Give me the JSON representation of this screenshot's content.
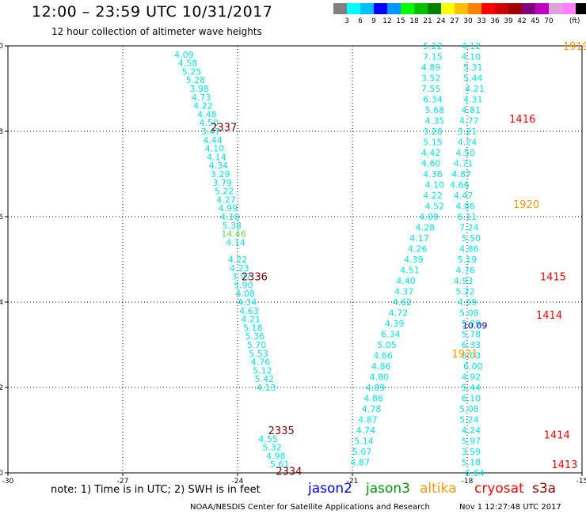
{
  "header": {
    "title": "12:00 – 23:59 UTC 10/31/2017",
    "subtitle": "12 hour collection of altimeter wave heights"
  },
  "colorbar": {
    "colors": [
      "#808080",
      "#00ffff",
      "#00bfff",
      "#0000ff",
      "#0096ff",
      "#00ff00",
      "#00c000",
      "#008000",
      "#ffff00",
      "#ffc000",
      "#ff8000",
      "#ff0000",
      "#d00000",
      "#a00000",
      "#800080",
      "#c000c0",
      "#e0a0e0",
      "#ff80ff",
      "#000000"
    ],
    "ticks": [
      "3",
      "6",
      "9",
      "12",
      "15",
      "18",
      "21",
      "24",
      "27",
      "30",
      "33",
      "36",
      "39",
      "42",
      "45",
      "70"
    ],
    "unit": "(ft)"
  },
  "chart_data": {
    "type": "scatter",
    "title": "12:00 – 23:59 UTC 10/31/2017",
    "subtitle": "12 hour collection of altimeter wave heights",
    "xlim": [
      -30,
      -15
    ],
    "ylim": [
      0,
      10
    ],
    "xticks": [
      "-30",
      "-27",
      "-24",
      "-21",
      "-18",
      "-15"
    ],
    "yticks": [
      "0",
      "2",
      "4",
      "6",
      "8",
      "10"
    ],
    "grid": true,
    "pass_labels": [
      {
        "text": "2337",
        "x": -24.7,
        "y": 8.1,
        "color": "#800000"
      },
      {
        "text": "2336",
        "x": -23.9,
        "y": 4.6,
        "color": "#800000"
      },
      {
        "text": "2335",
        "x": -23.2,
        "y": 1.0,
        "color": "#800000"
      },
      {
        "text": "2334",
        "x": -23.0,
        "y": 0.05,
        "color": "#800000"
      },
      {
        "text": "1919",
        "x": -15.5,
        "y": 10.0,
        "color": "#ff9900"
      },
      {
        "text": "1416",
        "x": -16.9,
        "y": 8.3,
        "color": "#ff0000"
      },
      {
        "text": "1920",
        "x": -16.8,
        "y": 6.3,
        "color": "#ff9900"
      },
      {
        "text": "1415",
        "x": -16.1,
        "y": 4.6,
        "color": "#ff0000"
      },
      {
        "text": "1414",
        "x": -16.2,
        "y": 3.7,
        "color": "#ff0000"
      },
      {
        "text": "1921",
        "x": -18.4,
        "y": 2.8,
        "color": "#ff9900"
      },
      {
        "text": "1414",
        "x": -16.0,
        "y": 0.9,
        "color": "#ff0000"
      },
      {
        "text": "1413",
        "x": -15.8,
        "y": 0.2,
        "color": "#ff0000"
      }
    ],
    "series": [
      {
        "color": "#00e8e8",
        "x": [
          -25.4,
          -25.3,
          -25.2,
          -25.1,
          -25.0,
          -24.95,
          -24.9,
          -24.8,
          -24.75,
          -24.7,
          -24.65,
          -24.6,
          -24.55,
          -24.5,
          -24.45,
          -24.4,
          -24.35,
          -24.3,
          -24.25,
          -24.2,
          -24.15,
          -24.1,
          -24.05,
          -24.0,
          -23.95,
          -23.9,
          -23.85,
          -23.8,
          -23.75,
          -23.7,
          -23.65,
          -23.6,
          -23.55,
          -23.5,
          -23.45,
          -23.4,
          -23.35,
          -23.3,
          -23.25
        ],
        "y": [
          9.8,
          9.6,
          9.4,
          9.2,
          9.0,
          8.8,
          8.6,
          8.4,
          8.2,
          8.0,
          7.8,
          7.6,
          7.4,
          7.2,
          7.0,
          6.8,
          6.6,
          6.4,
          6.2,
          6.0,
          5.8,
          5.6,
          5.4,
          5.0,
          4.8,
          4.6,
          4.4,
          4.2,
          4.0,
          3.8,
          3.6,
          3.4,
          3.2,
          3.0,
          2.8,
          2.6,
          2.4,
          2.2,
          2.0
        ],
        "labels": [
          "4.09",
          "4.58",
          "5.25",
          "5.28",
          "3.98",
          "4.73",
          "4.22",
          "4.48",
          "4.50",
          "3.47",
          "4.44",
          "4.10",
          "4.14",
          "4.34",
          "3.29",
          "3.79",
          "5.22",
          "4.27",
          "4.99",
          "4.10",
          "5.38",
          "14.46",
          "4.14",
          "4.22",
          "4.23",
          "3.97",
          "5.90",
          "4.08",
          "4.34",
          "4.63",
          "4.21",
          "5.18",
          "5.36",
          "5.70",
          "5.53",
          "4.76",
          "5.12",
          "5.42",
          "4.13"
        ]
      },
      {
        "color": "#00e8e8",
        "x": [
          -23.2,
          -23.1,
          -23.0,
          -22.9
        ],
        "y": [
          0.8,
          0.6,
          0.4,
          0.2
        ],
        "labels": [
          "4.55",
          "5.32",
          "4.98",
          "5.61"
        ]
      },
      {
        "color": "#00e8e8",
        "x": [
          -18.9,
          -18.9,
          -18.95,
          -18.95,
          -18.95,
          -18.9,
          -18.85,
          -18.85,
          -18.9,
          -18.9,
          -18.95,
          -18.95,
          -18.9,
          -18.85,
          -18.9,
          -18.85,
          -19.0,
          -19.1,
          -19.25,
          -19.3,
          -19.4,
          -19.5,
          -19.6,
          -19.65,
          -19.7,
          -19.8,
          -19.9,
          -20.0,
          -20.1,
          -20.2,
          -20.25,
          -20.3,
          -20.4,
          -20.45,
          -20.5,
          -20.6,
          -20.65
        ],
        "y": [
          10.0,
          9.75,
          9.5,
          9.25,
          9.0,
          8.75,
          8.5,
          8.25,
          8.0,
          7.75,
          7.5,
          7.25,
          7.0,
          6.75,
          6.5,
          6.25,
          6.0,
          5.75,
          5.5,
          5.25,
          5.0,
          4.75,
          4.5,
          4.25,
          4.0,
          3.75,
          3.5,
          3.25,
          3.0,
          2.75,
          2.5,
          2.25,
          2.0,
          1.75,
          1.5,
          1.25,
          1.0
        ],
        "labels": [
          "5.22",
          "7.15",
          "4.89",
          "3.52",
          "7.55",
          "6.34",
          "5.68",
          "4.35",
          "3.28",
          "5.15",
          "4.42",
          "4.60",
          "4.36",
          "4.10",
          "4.22",
          "4.52",
          "4.09",
          "4.28",
          "4.17",
          "4.26",
          "4.39",
          "4.51",
          "4.40",
          "4.37",
          "4.62",
          "4.72",
          "4.39",
          "6.34",
          "5.05",
          "4.66",
          "4.86",
          "4.80",
          "4.89",
          "4.86",
          "4.78",
          "4.87",
          "4.74"
        ]
      },
      {
        "color": "#00e8e8",
        "x": [
          -20.7,
          -20.75,
          -20.8
        ],
        "y": [
          0.75,
          0.5,
          0.25
        ],
        "labels": [
          "5.14",
          "5.07",
          "4.87"
        ]
      },
      {
        "color": "#00e8e8",
        "x": [
          -17.9,
          -17.9,
          -17.85,
          -17.85,
          -17.8,
          -17.85,
          -17.9,
          -17.95,
          -18.0,
          -18.0,
          -18.05,
          -18.1,
          -18.15,
          -18.2,
          -18.1,
          -18.05,
          -18.0,
          -17.95,
          -17.9,
          -17.95,
          -18.0,
          -18.05,
          -18.1,
          -18.05,
          -18.0,
          -17.95,
          -17.9,
          -17.9,
          -17.9,
          -17.9,
          -17.85,
          -17.9,
          -17.9,
          -17.9,
          -17.95,
          -17.95
        ],
        "y": [
          10.0,
          9.75,
          9.5,
          9.25,
          9.0,
          8.75,
          8.5,
          8.25,
          8.0,
          7.75,
          7.5,
          7.25,
          7.0,
          6.75,
          6.5,
          6.25,
          6.0,
          5.75,
          5.5,
          5.25,
          5.0,
          4.75,
          4.5,
          4.25,
          4.0,
          3.75,
          3.5,
          3.25,
          3.0,
          2.75,
          2.5,
          2.25,
          2.0,
          1.75,
          1.5,
          1.25
        ],
        "labels": [
          "4.12",
          "4.10",
          "5.31",
          "5.44",
          "4.21",
          "4.31",
          "4.81",
          "4.77",
          "3.21",
          "4.24",
          "4.50",
          "4.71",
          "4.87",
          "4.66",
          "4.47",
          "4.86",
          "6.11",
          "7.24",
          "5.50",
          "4.86",
          "5.19",
          "4.76",
          "4.93",
          "5.22",
          "4.59",
          "5.08",
          "5.29",
          "5.78",
          "6.33",
          "6.03",
          "6.00",
          "4.92",
          "5.44",
          "6.10",
          "5.08",
          "5.24"
        ]
      },
      {
        "color": "#00e8e8",
        "x": [
          -17.9,
          -17.9,
          -17.9,
          -17.9
        ],
        "y": [
          1.0,
          0.75,
          0.5,
          0.25
        ],
        "labels": [
          "4.24",
          "5.97",
          "3.59",
          "5.18"
        ]
      },
      {
        "color": "#00e8e8",
        "x": [
          -17.8
        ],
        "y": [
          0.0
        ],
        "labels": [
          "5.64"
        ]
      },
      {
        "color": "#0000cc",
        "x": [
          -17.8
        ],
        "y": [
          3.45
        ],
        "labels": [
          "10.09"
        ]
      }
    ]
  },
  "note": "note:  1) Time is in UTC; 2) SWH is in feet",
  "satellites": [
    {
      "name": "jason2",
      "color": "#0000ff"
    },
    {
      "name": "jason3",
      "color": "#009900"
    },
    {
      "name": "altika",
      "color": "#ff9900"
    },
    {
      "name": "cryosat",
      "color": "#ff0000"
    },
    {
      "name": "s3a",
      "color": "#990000"
    }
  ],
  "footer": {
    "center": "NOAA/NESDIS Center for Satellite Applications and Research",
    "timestamp": "Nov  1 12:27:48 UTC 2017"
  }
}
